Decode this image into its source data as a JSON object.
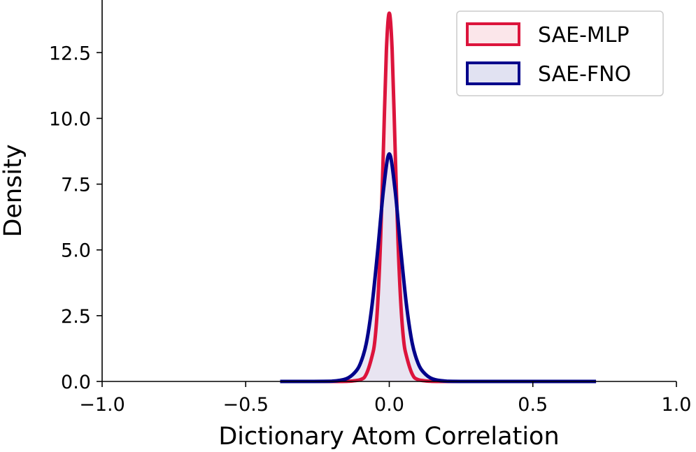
{
  "chart_data": {
    "type": "area",
    "xlabel": "Dictionary Atom Correlation",
    "ylabel": "Density",
    "xlim": [
      -1.0,
      1.0
    ],
    "ylim": [
      0,
      14.5
    ],
    "x_ticks": [
      -1.0,
      -0.5,
      0.0,
      0.5,
      1.0
    ],
    "x_tick_labels": [
      "−1.0",
      "−0.5",
      "0.0",
      "0.5",
      "1.0"
    ],
    "y_ticks": [
      0.0,
      2.5,
      5.0,
      7.5,
      10.0,
      12.5
    ],
    "y_tick_labels": [
      "0.0",
      "2.5",
      "5.0",
      "7.5",
      "10.0",
      "12.5"
    ],
    "grid": false,
    "legend_position": "top-right",
    "series": [
      {
        "name": "SAE-MLP",
        "color": "#dc143c",
        "fill": "#fbe6ea",
        "x": [
          -0.38,
          -0.3,
          -0.2,
          -0.15,
          -0.1,
          -0.08,
          -0.06,
          -0.05,
          -0.04,
          -0.03,
          -0.02,
          -0.01,
          0.0,
          0.01,
          0.02,
          0.03,
          0.04,
          0.05,
          0.06,
          0.08,
          0.1,
          0.15,
          0.2,
          0.3,
          0.5,
          0.72
        ],
        "values": [
          0,
          0,
          0,
          0.002,
          0.07,
          0.28,
          0.96,
          1.57,
          3.0,
          5.45,
          9.0,
          12.6,
          14.0,
          12.6,
          9.0,
          5.45,
          3.0,
          1.57,
          0.96,
          0.28,
          0.07,
          0.002,
          0,
          0,
          0,
          0
        ]
      },
      {
        "name": "SAE-FNO",
        "color": "#00008b",
        "fill": "#e1e2f2",
        "x": [
          -0.38,
          -0.3,
          -0.2,
          -0.15,
          -0.12,
          -0.1,
          -0.08,
          -0.06,
          -0.04,
          -0.02,
          0.0,
          0.02,
          0.04,
          0.06,
          0.08,
          0.1,
          0.12,
          0.15,
          0.2,
          0.3,
          0.5,
          0.72
        ],
        "values": [
          0,
          0,
          0.01,
          0.1,
          0.34,
          0.7,
          1.45,
          2.9,
          5.0,
          7.3,
          8.65,
          7.3,
          5.0,
          2.9,
          1.45,
          0.7,
          0.34,
          0.1,
          0.01,
          0,
          0,
          0
        ]
      }
    ]
  }
}
